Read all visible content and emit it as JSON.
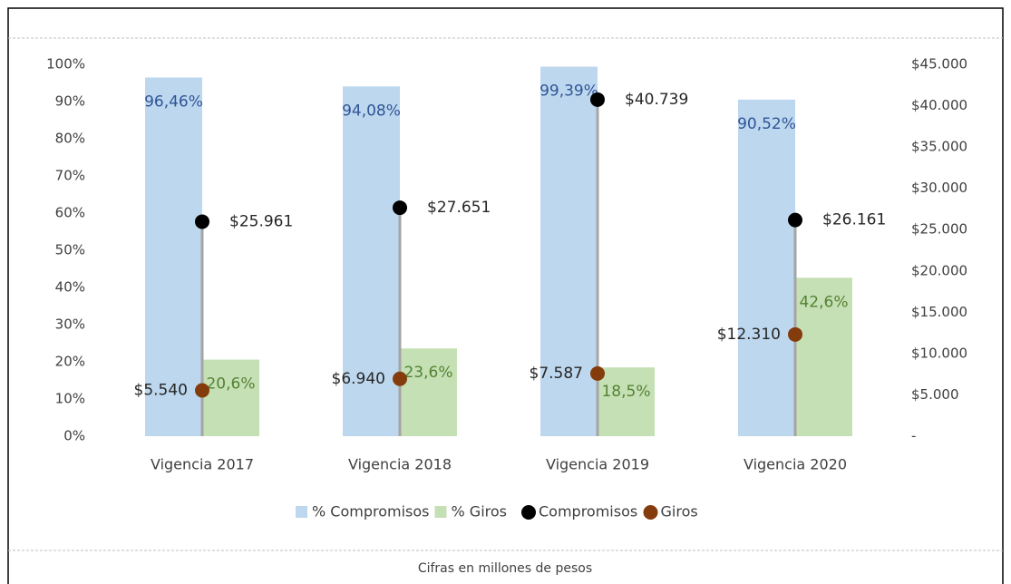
{
  "chart_data": {
    "type": "bar",
    "caption": "Cifras en millones de pesos",
    "categories": [
      "Vigencia 2017",
      "Vigencia 2018",
      "Vigencia 2019",
      "Vigencia 2020"
    ],
    "series": [
      {
        "name": "% Compromisos",
        "type": "bar",
        "color": "#bdd7ee",
        "label_color": "#2f5597",
        "values": [
          96.46,
          94.08,
          99.39,
          90.52
        ],
        "value_labels": [
          "96,46%",
          "94,08%",
          "99,39%",
          "90,52%"
        ]
      },
      {
        "name": "% Giros",
        "type": "bar",
        "color": "#c5e0b4",
        "label_color": "#548235",
        "values": [
          20.6,
          23.6,
          18.5,
          42.6
        ],
        "value_labels": [
          "20,6%",
          "23,6%",
          "18,5%",
          "42,6%"
        ]
      },
      {
        "name": "Compromisos",
        "type": "scatter",
        "axis": "y2",
        "color": "#000000",
        "label_color": "#262626",
        "values": [
          25961,
          27651,
          40739,
          26161
        ],
        "value_labels": [
          "$25.961",
          "$27.651",
          "$40.739",
          "$26.161"
        ]
      },
      {
        "name": "Giros",
        "type": "scatter",
        "axis": "y2",
        "color": "#843c0c",
        "label_color": "#262626",
        "values": [
          5540,
          6940,
          7587,
          12310
        ],
        "value_labels": [
          "$5.540",
          "$6.940",
          "$7.587",
          "$12.310"
        ]
      }
    ],
    "ylim": [
      0,
      100
    ],
    "yticks": [
      {
        "value": 0,
        "label": "0%"
      },
      {
        "value": 10,
        "label": "10%"
      },
      {
        "value": 20,
        "label": "20%"
      },
      {
        "value": 30,
        "label": "30%"
      },
      {
        "value": 40,
        "label": "40%"
      },
      {
        "value": 50,
        "label": "50%"
      },
      {
        "value": 60,
        "label": "60%"
      },
      {
        "value": 70,
        "label": "70%"
      },
      {
        "value": 80,
        "label": "80%"
      },
      {
        "value": 90,
        "label": "90%"
      },
      {
        "value": 100,
        "label": "100%"
      }
    ],
    "y2lim": [
      0,
      45000
    ],
    "y2ticks": [
      {
        "value": 0,
        "label": "-"
      },
      {
        "value": 5000,
        "label": "$5.000"
      },
      {
        "value": 10000,
        "label": "$10.000"
      },
      {
        "value": 15000,
        "label": "$15.000"
      },
      {
        "value": 20000,
        "label": "$20.000"
      },
      {
        "value": 25000,
        "label": "$25.000"
      },
      {
        "value": 30000,
        "label": "$30.000"
      },
      {
        "value": 35000,
        "label": "$35.000"
      },
      {
        "value": 40000,
        "label": "$40.000"
      },
      {
        "value": 45000,
        "label": "$45.000"
      }
    ],
    "legend": "bottom",
    "drop_line_color": "#a5a5a5"
  }
}
